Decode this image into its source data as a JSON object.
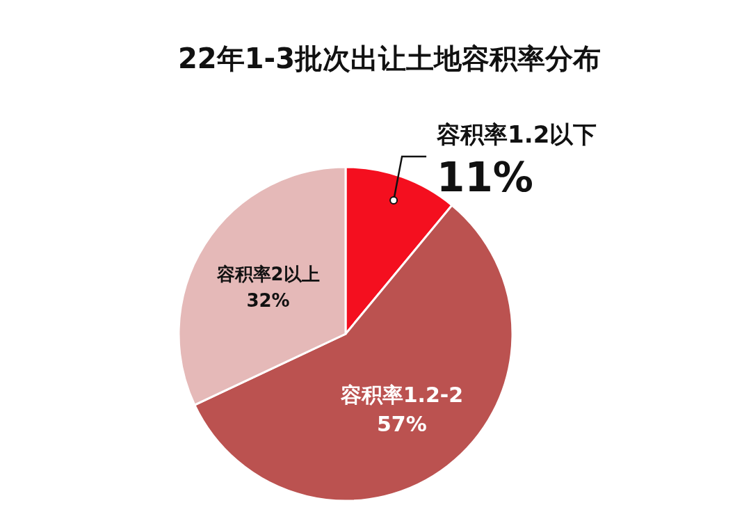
{
  "chart_data": {
    "type": "pie",
    "title": "22年1-3批次出让土地容积率分布",
    "categories": [
      "容积率1.2以下",
      "容积率1.2-2",
      "容积率2以上"
    ],
    "values": [
      11,
      57,
      32
    ],
    "value_labels": [
      "11%",
      "57%",
      "32%"
    ],
    "colors": [
      "#f40f1f",
      "#bb5250",
      "#e5b9b8"
    ]
  }
}
